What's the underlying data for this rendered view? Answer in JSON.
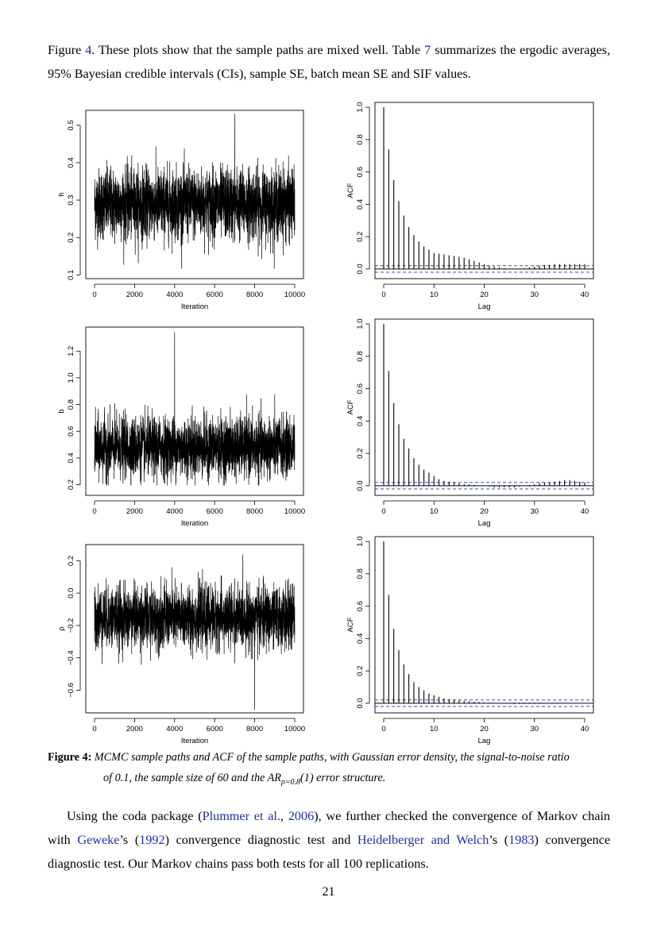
{
  "paragraph1": {
    "t1": "Figure ",
    "ref_fig": "4",
    "t2": ". These plots show that the sample paths are mixed well. Table ",
    "ref_table": "7",
    "t3": " summarizes the ergodic averages, 95% Bayesian credible intervals (CIs), sample SE, batch mean SE and SIF values."
  },
  "caption": {
    "label": "Figure 4:",
    "line1": "MCMC sample paths and ACF of the sample paths, with Gaussian error density, the signal-to-noise ratio",
    "line2_a": "of 0.1, the sample size of 60 and the AR",
    "sub": "ρ=0.8",
    "line2_b": "(1) error structure."
  },
  "paragraph2": {
    "t1": "Using the coda package (",
    "cite1": "Plummer et al.",
    "t2": ", ",
    "cite1_year": "2006",
    "t3": "), we further checked the convergence of Markov chain with ",
    "cite2": "Geweke",
    "t4": "’s (",
    "cite2_year": "1992",
    "t5": ") convergence diagnostic test and ",
    "cite3": "Heidelberger and Welch",
    "t6": "’s (",
    "cite3_year": "1983",
    "t7": ") convergence diagnostic test. Our Markov chains pass both tests for all 100 replications."
  },
  "page_number": "21",
  "colors": {
    "link": "#1a2ea8",
    "ci_line": "#2233aa"
  },
  "chart_data": [
    {
      "type": "line",
      "panel": "trace-h",
      "xlabel": "Iteration",
      "ylabel": "h",
      "xlim": [
        0,
        10000
      ],
      "ylim": [
        0.09,
        0.54
      ],
      "xticks": [
        "0",
        "2000",
        "4000",
        "6000",
        "8000",
        "10000"
      ],
      "yticks": [
        "0.1",
        "0.2",
        "0.3",
        "0.4",
        "0.5"
      ],
      "mean": 0.29,
      "sd": 0.055,
      "max_point": [
        7000,
        0.53
      ]
    },
    {
      "type": "bar",
      "panel": "acf-h",
      "xlabel": "Lag",
      "ylabel": "ACF",
      "xlim": [
        0,
        41
      ],
      "ylim": [
        -0.03,
        1.02
      ],
      "xticks": [
        "0",
        "10",
        "20",
        "30",
        "40"
      ],
      "yticks": [
        "0.0",
        "0.2",
        "0.4",
        "0.6",
        "0.8",
        "1.0"
      ],
      "ci": 0.02,
      "values": [
        1.0,
        0.74,
        0.55,
        0.42,
        0.33,
        0.26,
        0.21,
        0.17,
        0.14,
        0.12,
        0.1,
        0.095,
        0.09,
        0.085,
        0.08,
        0.075,
        0.07,
        0.06,
        0.05,
        0.04,
        0.03,
        0.02,
        0.015,
        0.01,
        0.005,
        0.0,
        0.0,
        0.0,
        0.005,
        0.01,
        0.015,
        0.02,
        0.025,
        0.025,
        0.03,
        0.03,
        0.03,
        0.03,
        0.03,
        0.03,
        0.03
      ]
    },
    {
      "type": "line",
      "panel": "trace-b",
      "xlabel": "Iteration",
      "ylabel": "b",
      "xlim": [
        0,
        10000
      ],
      "ylim": [
        0.12,
        1.38
      ],
      "xticks": [
        "0",
        "2000",
        "4000",
        "6000",
        "8000",
        "10000"
      ],
      "yticks": [
        "0.2",
        "0.4",
        "0.6",
        "0.8",
        "1.0",
        "1.2"
      ],
      "mean": 0.48,
      "sd": 0.13,
      "max_point": [
        4000,
        1.34
      ]
    },
    {
      "type": "bar",
      "panel": "acf-b",
      "xlabel": "Lag",
      "ylabel": "ACF",
      "xlim": [
        0,
        41
      ],
      "ylim": [
        -0.03,
        1.02
      ],
      "xticks": [
        "0",
        "10",
        "20",
        "30",
        "40"
      ],
      "yticks": [
        "0.0",
        "0.2",
        "0.4",
        "0.6",
        "0.8",
        "1.0"
      ],
      "ci": 0.02,
      "values": [
        1.0,
        0.71,
        0.51,
        0.38,
        0.29,
        0.23,
        0.17,
        0.13,
        0.1,
        0.08,
        0.06,
        0.04,
        0.03,
        0.025,
        0.02,
        0.015,
        0.01,
        0.008,
        0.005,
        0.0,
        0.0,
        -0.005,
        -0.01,
        -0.01,
        -0.01,
        -0.01,
        -0.01,
        -0.005,
        0.0,
        0.005,
        0.01,
        0.015,
        0.02,
        0.02,
        0.025,
        0.03,
        0.035,
        0.035,
        0.03,
        0.025,
        0.02
      ]
    },
    {
      "type": "line",
      "panel": "trace-rho",
      "xlabel": "Iteration",
      "ylabel": "ρ",
      "xlim": [
        0,
        10000
      ],
      "ylim": [
        -0.74,
        0.3
      ],
      "xticks": [
        "0",
        "2000",
        "4000",
        "6000",
        "8000",
        "10000"
      ],
      "yticks": [
        "−0.6",
        "−0.4",
        "−0.2",
        "0.0",
        "0.2"
      ],
      "ytick_values": [
        -0.6,
        -0.4,
        -0.2,
        0.0,
        0.2
      ],
      "mean": -0.15,
      "sd": 0.11,
      "min_point": [
        8000,
        -0.72
      ]
    },
    {
      "type": "bar",
      "panel": "acf-rho",
      "xlabel": "Lag",
      "ylabel": "ACF",
      "xlim": [
        0,
        41
      ],
      "ylim": [
        -0.03,
        1.02
      ],
      "xticks": [
        "0",
        "10",
        "20",
        "30",
        "40"
      ],
      "yticks": [
        "0.0",
        "0.2",
        "0.4",
        "0.6",
        "0.8",
        "1.0"
      ],
      "ci": 0.02,
      "values": [
        1.0,
        0.67,
        0.46,
        0.33,
        0.24,
        0.18,
        0.13,
        0.1,
        0.08,
        0.06,
        0.05,
        0.04,
        0.03,
        0.025,
        0.02,
        0.018,
        0.015,
        0.012,
        0.01,
        0.008,
        0.005,
        0.003,
        0.0,
        0.0,
        -0.002,
        -0.003,
        -0.005,
        -0.005,
        -0.005,
        -0.005,
        -0.005,
        -0.004,
        -0.003,
        -0.002,
        -0.002,
        -0.001,
        0.0,
        0.0,
        0.0,
        0.001,
        0.001
      ]
    }
  ]
}
